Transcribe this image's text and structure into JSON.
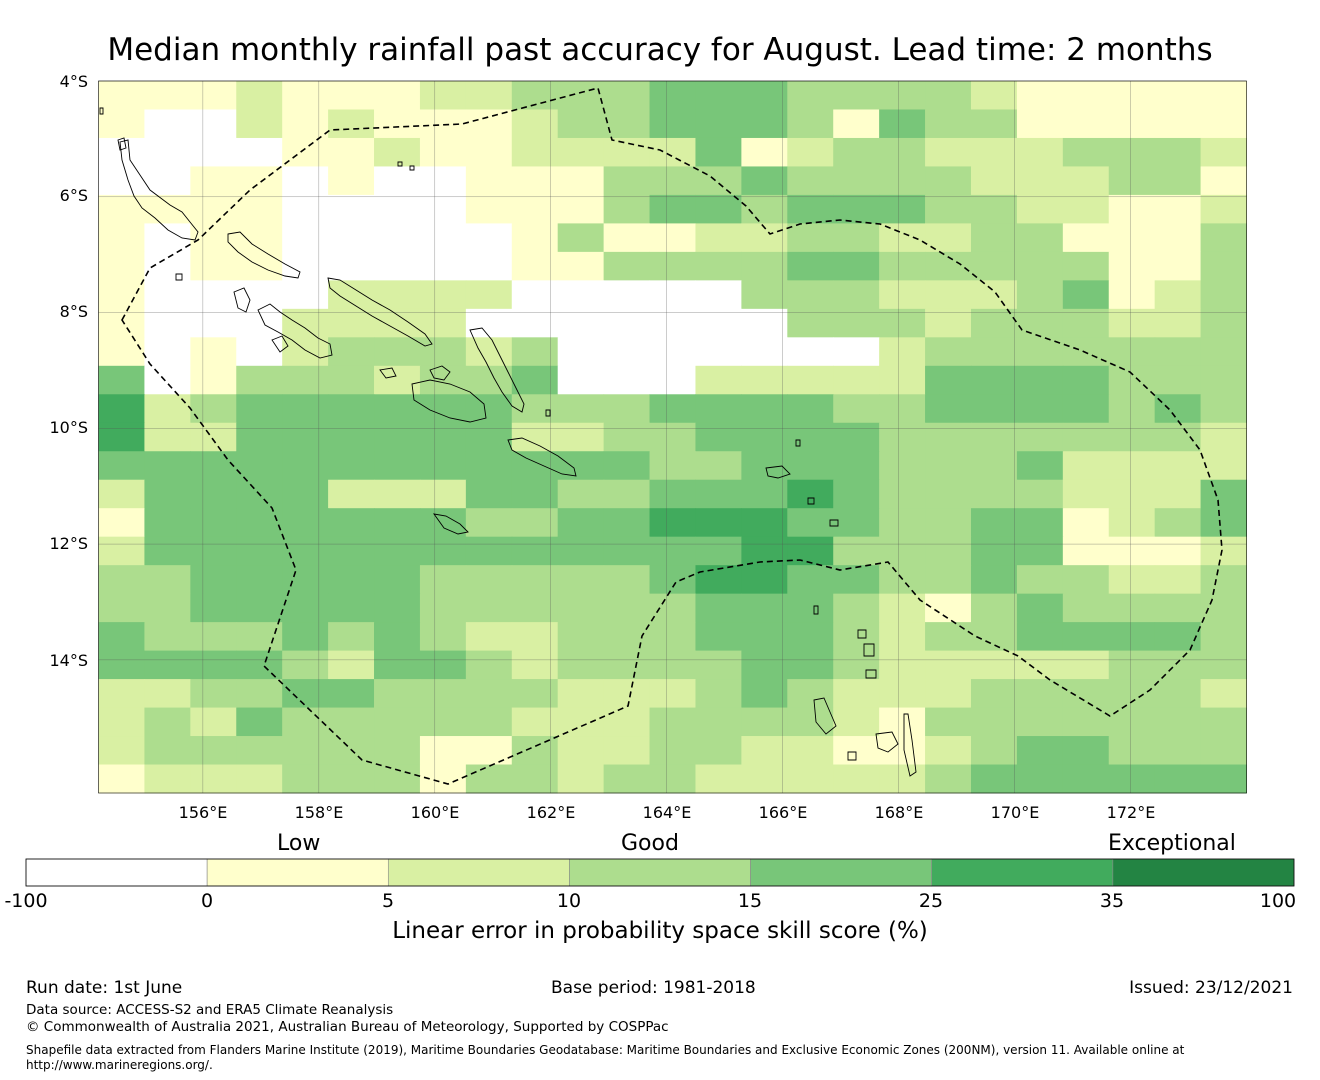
{
  "title": "Median monthly rainfall past accuracy for August. Lead time: 2 months",
  "map": {
    "lon_range": [
      154.2,
      174.0
    ],
    "lat_range": [
      -16.3,
      -4.0
    ],
    "lat_ticks": [
      {
        "value": -4,
        "label": "4°S"
      },
      {
        "value": -6,
        "label": "6°S"
      },
      {
        "value": -8,
        "label": "8°S"
      },
      {
        "value": -10,
        "label": "10°S"
      },
      {
        "value": -12,
        "label": "12°S"
      },
      {
        "value": -14,
        "label": "14°S"
      }
    ],
    "lon_ticks": [
      {
        "value": 156,
        "label": "156°E"
      },
      {
        "value": 158,
        "label": "158°E"
      },
      {
        "value": 160,
        "label": "160°E"
      },
      {
        "value": 162,
        "label": "162°E"
      },
      {
        "value": 164,
        "label": "164°E"
      },
      {
        "value": 166,
        "label": "166°E"
      },
      {
        "value": 168,
        "label": "168°E"
      },
      {
        "value": 170,
        "label": "170°E"
      },
      {
        "value": 172,
        "label": "172°E"
      }
    ],
    "grid_cell_legend_class_index": [
      "0 = below 0 (white)",
      "1 = 0–5",
      "2 = 5–10",
      "3 = 10–15",
      "4 = 15–25",
      "5 = 25–35",
      "6 = 35–100"
    ],
    "grid_rows": [
      "1112111223334443333211111",
      "1002121112334443143311111",
      "0000112112222412332223332",
      "0011010011133343333222331",
      "1111000011134434443322112",
      "1011000001311223322331113",
      "1011000001133334433333113",
      "1000022220000033322234123",
      "1000222200000003332333223",
      "1010233323000000023333333",
      "4013332334000222224444333",
      "5234444443334444334444343",
      "5224444442233444433333332",
      "4444444444443344433342222",
      "2444422244334445433332224",
      "1444444433445554433441234",
      "2444444444444455333441112",
      "3344444333334554433433223",
      "3344444333333444321343333",
      "4333434322333444323344443",
      "4444324432333344322222333",
      "2233443333222343222333332",
      "2324333332223333213333333",
      "2333333113223322112344333",
      "1222333133233222223444444"
    ],
    "colors": [
      "#ffffff",
      "#ffffcc",
      "#d9f0a3",
      "#addd8e",
      "#78c679",
      "#41ab5d",
      "#238443"
    ]
  },
  "colorbar": {
    "qualitative_labels": [
      "Low",
      "Good",
      "Exceptional"
    ],
    "ticks": [
      "-100",
      "0",
      "5",
      "10",
      "15",
      "25",
      "35",
      "100"
    ],
    "colors": [
      "#ffffff",
      "#ffffcc",
      "#d9f0a3",
      "#addd8e",
      "#78c679",
      "#41ab5d",
      "#238443"
    ],
    "title": "Linear error in probability space skill score (%)"
  },
  "footer": {
    "run_date": "Run date: 1st June",
    "base_period": "Base period: 1981-2018",
    "issued": "Issued: 23/12/2021",
    "data_source": "Data source: ACCESS-S2 and ERA5 Climate Reanalysis",
    "copyright": "© Commonwealth of Australia 2021, Australian Bureau of Meteorology, Supported by COSPPac",
    "shapefile_line1": "Shapefile data extracted from Flanders Marine Institute (2019), Maritime Boundaries Geodatabase: Maritime Boundaries and Exclusive Economic Zones (200NM), version 11. Available online at",
    "shapefile_line2": "http://www.marineregions.org/."
  }
}
